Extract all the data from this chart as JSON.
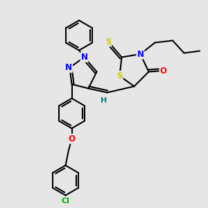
{
  "bg_color": "#e6e6e6",
  "bond_color": "#000000",
  "bond_width": 1.5,
  "atom_colors": {
    "N": "#0000ff",
    "O": "#ff0000",
    "S": "#cccc00",
    "Cl": "#00aa00",
    "C": "#000000",
    "H": "#008080"
  },
  "font_size": 8.5,
  "figsize": [
    3.0,
    3.0
  ],
  "dpi": 100
}
